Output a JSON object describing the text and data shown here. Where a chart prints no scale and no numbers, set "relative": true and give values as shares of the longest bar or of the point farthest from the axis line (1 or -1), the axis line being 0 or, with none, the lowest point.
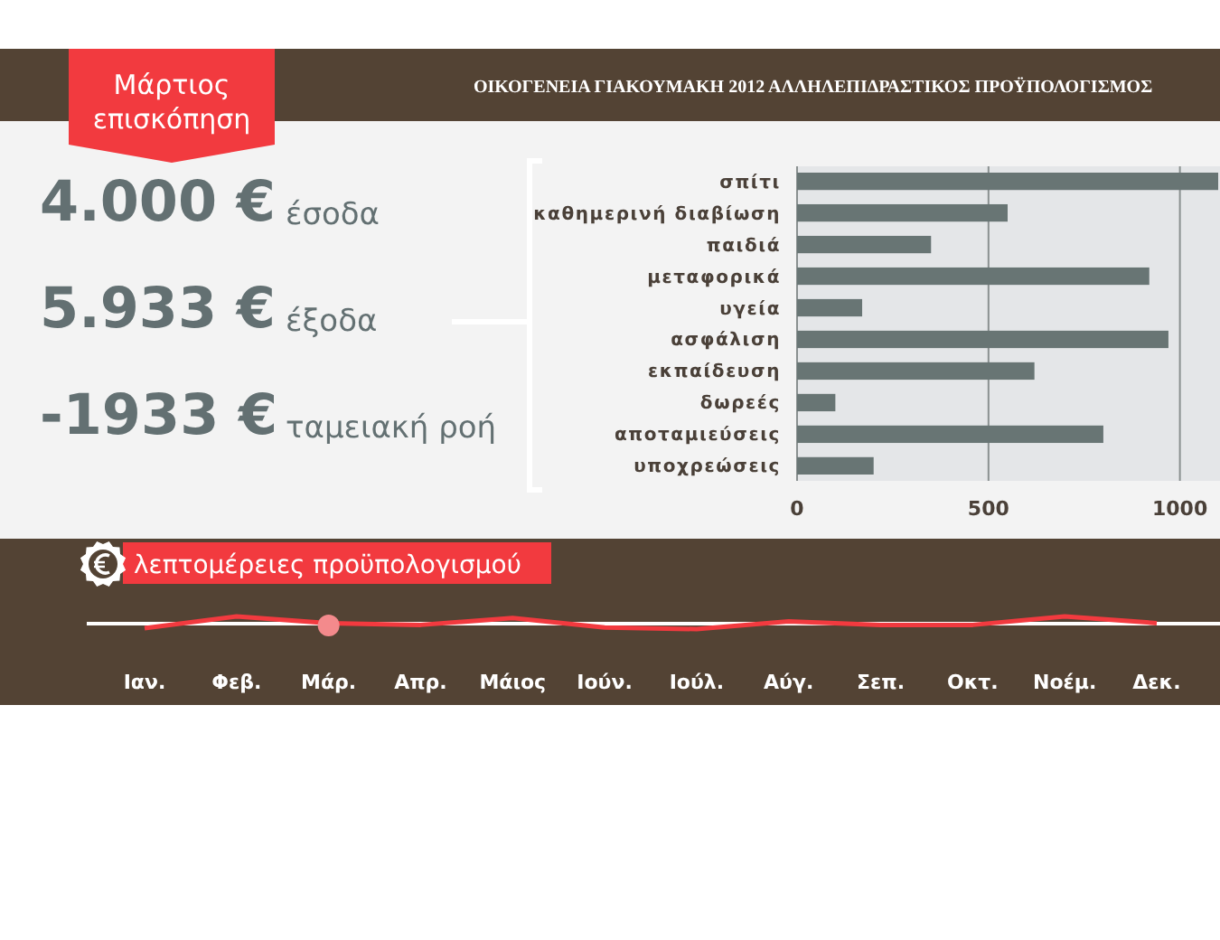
{
  "chart_data": [
    {
      "type": "other",
      "title": "Μάρτιος επισκόπηση",
      "annotations": [
        "4.000 €",
        "έσοδα",
        "5.933 €",
        "έξοδα",
        "-1933 €",
        "ταμειακή ροή"
      ]
    },
    {
      "type": "bar",
      "title": "ΟΙΚΟΓΕΝΕΙΑ ΓΙΑΚΟΥΜΑΚΗ 2012 ΑΛΛΗΛΕΠΙΔΡΑΣΤΙΚΟΣ ΠΡΟΫΠΟΛΟΓΙΣΜΟΣ",
      "orientation": "horizontal",
      "categories": [
        "σπίτι",
        "καθημερινή διαβίωση",
        "παιδιά",
        "μεταφορικά",
        "υγεία",
        "ασφάλιση",
        "εκπαίδευση",
        "δωρεές",
        "αποταμιεύσεις",
        "υποχρεώσεις"
      ],
      "values": [
        1100,
        550,
        350,
        920,
        170,
        970,
        620,
        100,
        800,
        200
      ],
      "color": "#687574",
      "xlim": [
        0,
        1100
      ],
      "xticks": [
        0,
        500,
        1000
      ],
      "grid": "x"
    },
    {
      "type": "line",
      "title": "λεπτομέρειες προϋπολογισμού",
      "relative": true,
      "categories": [
        "Ιαν.",
        "Φεβ.",
        "Μάρ.",
        "Απρ.",
        "Μάιος",
        "Ιούν.",
        "Ιούλ.",
        "Αύγ.",
        "Σεπ.",
        "Οκτ.",
        "Νοέμ.",
        "Δεκ."
      ],
      "series": [
        {
          "color": "#f23a3f",
          "values": [
            0.07,
            1,
            0.47,
            0.33,
            0.87,
            0.13,
            0,
            0.6,
            0.33,
            0.33,
            1,
            0.47
          ]
        }
      ]
    }
  ]
}
